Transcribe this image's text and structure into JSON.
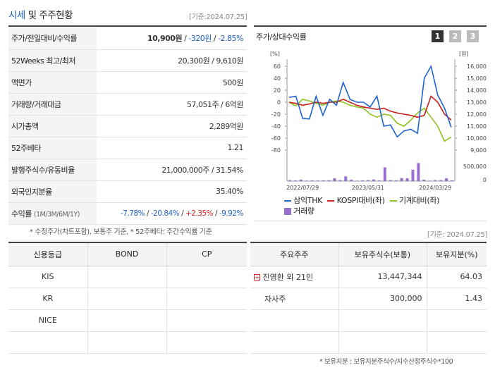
{
  "left": {
    "title_main": "시세",
    "title_rest": " 및 주주현황",
    "base_date": "[기준:2024.07.25]",
    "rows": [
      {
        "label": "주가/전일대비/수익률",
        "price": "10,900원",
        "sep1": " / ",
        "change": "-320원",
        "sep2": " / ",
        "rate": "-2.85%"
      },
      {
        "label": "52Weeks 최고/최저",
        "value": "20,300원 / 9,610원"
      },
      {
        "label": "액면가",
        "value": "500원"
      },
      {
        "label": "거래량/거래대금",
        "value": "57,051주 / 6억원"
      },
      {
        "label": "시가총액",
        "value": "2,289억원"
      },
      {
        "label": "52주베타",
        "value": "1.21"
      },
      {
        "label": "발행주식수/유동비율",
        "value": "21,000,000주 / 31.54%"
      },
      {
        "label": "외국인지분율",
        "value": "35.40%"
      },
      {
        "label": "수익률",
        "label_sub": "(1M/3M/6M/1Y)",
        "r1": "-7.78%",
        "r2": "-20.84%",
        "r3": "+2.35%",
        "r4": "-9.92%",
        "s": "/ "
      }
    ],
    "note": "* 수정주가(차트포함), 보통주 기준, * 52주베타: 주간수익률 기준"
  },
  "credit": {
    "headers": [
      "신용등급",
      "BOND",
      "CP"
    ],
    "agencies": [
      "KIS",
      "KR",
      "NICE",
      ""
    ]
  },
  "holders": {
    "base_date": "[기준: 2024.07.25]",
    "headers": [
      "주요주주",
      "보유주식수(보통)",
      "보유지분(%)"
    ],
    "rows": [
      {
        "name": "진영환 외 21인",
        "shares": "13,447,344",
        "pct": "64.03"
      },
      {
        "name": "자사주",
        "shares": "300,000",
        "pct": "1.43"
      }
    ],
    "note": "* 보유지분 : 보유지분주식수/지수산정주식수*100"
  },
  "chart_panel": {
    "title": "주가/상대수익률",
    "pages": [
      "1",
      "2",
      "3"
    ]
  },
  "chart_data": {
    "type": "line",
    "x_labels": [
      "2022/07/29",
      "2023/05/31",
      "2024/03/29"
    ],
    "left_unit": "[%]",
    "right_unit": "[원]",
    "left_ticks": [
      60,
      40,
      20,
      0,
      -20,
      -40,
      -60,
      -80
    ],
    "right_ticks": [
      "16,000",
      "15,000",
      "14,000",
      "13,000",
      "12,000",
      "11,000",
      "10,000",
      "9,000"
    ],
    "volume_ticks": [
      "500,000",
      "0"
    ],
    "ylim_left": [
      -80,
      60
    ],
    "series": [
      {
        "name": "삼익THK",
        "color": "#1e62d0",
        "values": [
          8,
          10,
          -27,
          -28,
          10,
          -22,
          5,
          -5,
          33,
          5,
          0,
          0,
          -8,
          10,
          -40,
          -38,
          -58,
          -48,
          -45,
          -52,
          40,
          60,
          12,
          -10,
          -42
        ]
      },
      {
        "name": "KOSPI대비(좌)",
        "color": "#c81e1e",
        "values": [
          0,
          -2,
          -5,
          -3,
          0,
          -2,
          0,
          0,
          5,
          0,
          -5,
          -8,
          -10,
          -12,
          -10,
          -15,
          -18,
          -20,
          -22,
          -25,
          -22,
          10,
          0,
          -20,
          -30
        ]
      },
      {
        "name": "기계대비(좌)",
        "color": "#8cc21e",
        "values": [
          0,
          -6,
          5,
          2,
          -2,
          -5,
          0,
          2,
          0,
          -5,
          -8,
          -10,
          -20,
          -25,
          -20,
          -22,
          -35,
          -40,
          -30,
          -18,
          -10,
          -25,
          -40,
          -65,
          -58
        ]
      },
      {
        "name": "거래량",
        "color": "#9a6fd0",
        "values": [
          40000,
          30000,
          60000,
          20000,
          30000,
          25000,
          30000,
          35000,
          120000,
          40000,
          200000,
          60000,
          20000,
          30000,
          40000,
          70000,
          30000,
          580000,
          40000,
          30000,
          130000,
          120000,
          480000,
          760000,
          60000,
          20000,
          40000,
          40000,
          120000,
          30000
        ]
      }
    ],
    "volume_max": 800000
  }
}
